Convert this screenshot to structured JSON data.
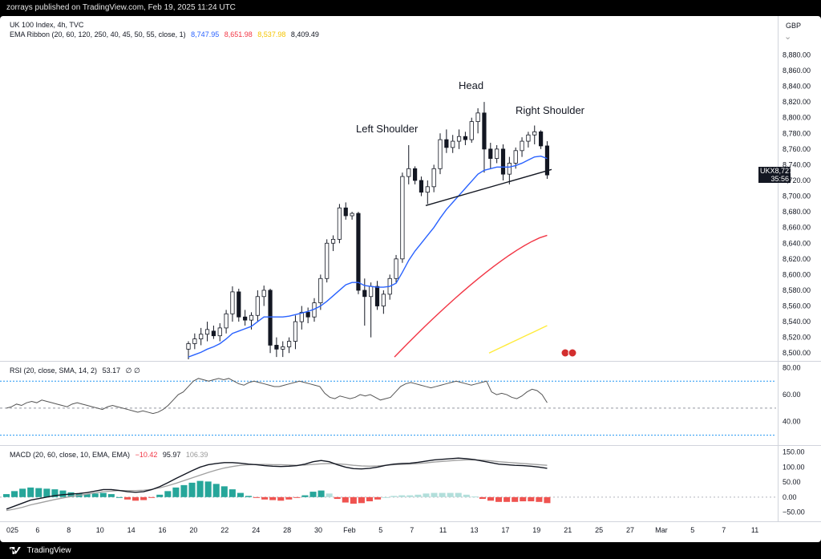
{
  "header": {
    "publisher": "zorrays published on TradingView.com, Feb 19, 2025 11:24 UTC"
  },
  "footer": {
    "brand": "TradingView"
  },
  "main_pane": {
    "title": "UK 100 Index, 4h, TVC",
    "indicator": "EMA Ribbon (20, 60, 120, 250, 40, 45, 50, 55, close, 1)",
    "ema_values": [
      "8,747.95",
      "8,651.98",
      "8,537.98",
      "8,409.49"
    ],
    "ema_colors": [
      "#2962ff",
      "#f23645",
      "#ffeb3b",
      "#131722"
    ],
    "currency": "GBP",
    "symbol": "UKX",
    "last_price": "8,727.23",
    "countdown": "35:56"
  },
  "rsi_pane": {
    "title": "RSI (20, close, SMA, 14, 2)",
    "value": "53.17",
    "extra": "∅ ∅"
  },
  "macd_pane": {
    "title": "MACD (20, 60, close, 10, EMA, EMA)",
    "values": [
      "−10.42",
      "95.97",
      "106.39"
    ]
  },
  "x_axis": {
    "labels": [
      "025",
      "6",
      "8",
      "10",
      "14",
      "16",
      "20",
      "22",
      "24",
      "28",
      "30",
      "Feb",
      "5",
      "7",
      "11",
      "13",
      "17",
      "19",
      "21",
      "25",
      "27",
      "Mar",
      "5",
      "7",
      "11"
    ]
  },
  "chart_data": [
    {
      "type": "candlestick",
      "title": "UK 100 Index, 4h, TVC",
      "y_axis": {
        "ticks": [
          8880,
          8860,
          8840,
          8820,
          8800,
          8780,
          8760,
          8740,
          8720,
          8700,
          8680,
          8660,
          8640,
          8620,
          8600,
          8580,
          8560,
          8540,
          8520,
          8500
        ],
        "tick_labels": [
          "8,880.00",
          "8,860.00",
          "8,840.00",
          "8,820.00",
          "8,800.00",
          "8,780.00",
          "8,760.00",
          "8,740.00",
          "8,720.00",
          "8,700.00",
          "8,680.00",
          "8,660.00",
          "8,640.00",
          "8,620.00",
          "8,600.00",
          "8,580.00",
          "8,560.00",
          "8,540.00",
          "8,520.00",
          "8,500.00"
        ],
        "range": [
          8490,
          8905
        ]
      },
      "annotations": [
        "Left Shoulder",
        "Head",
        "Right Shoulder"
      ],
      "candles": [
        [
          8505,
          8515,
          8492,
          8512
        ],
        [
          8512,
          8525,
          8505,
          8518
        ],
        [
          8518,
          8532,
          8510,
          8524
        ],
        [
          8524,
          8540,
          8515,
          8530
        ],
        [
          8528,
          8535,
          8518,
          8522
        ],
        [
          8522,
          8538,
          8515,
          8532
        ],
        [
          8532,
          8555,
          8525,
          8550
        ],
        [
          8550,
          8585,
          8540,
          8578
        ],
        [
          8578,
          8582,
          8540,
          8546
        ],
        [
          8546,
          8555,
          8535,
          8542
        ],
        [
          8542,
          8552,
          8530,
          8548
        ],
        [
          8548,
          8580,
          8540,
          8572
        ],
        [
          8572,
          8586,
          8560,
          8580
        ],
        [
          8580,
          8582,
          8500,
          8510
        ],
        [
          8510,
          8520,
          8495,
          8505
        ],
        [
          8505,
          8515,
          8495,
          8508
        ],
        [
          8508,
          8520,
          8500,
          8515
        ],
        [
          8515,
          8548,
          8505,
          8540
        ],
        [
          8540,
          8560,
          8530,
          8552
        ],
        [
          8552,
          8558,
          8538,
          8546
        ],
        [
          8546,
          8570,
          8540,
          8564
        ],
        [
          8564,
          8600,
          8555,
          8595
        ],
        [
          8595,
          8645,
          8590,
          8640
        ],
        [
          8640,
          8650,
          8630,
          8645
        ],
        [
          8645,
          8690,
          8640,
          8685
        ],
        [
          8685,
          8692,
          8670,
          8675
        ],
        [
          8675,
          8680,
          8670,
          8678
        ],
        [
          8678,
          8680,
          8575,
          8580
        ],
        [
          8580,
          8595,
          8535,
          8572
        ],
        [
          8572,
          8590,
          8520,
          8585
        ],
        [
          8585,
          8592,
          8555,
          8560
        ],
        [
          8560,
          8580,
          8550,
          8575
        ],
        [
          8575,
          8600,
          8568,
          8595
        ],
        [
          8595,
          8625,
          8590,
          8620
        ],
        [
          8620,
          8730,
          8615,
          8725
        ],
        [
          8725,
          8765,
          8715,
          8735
        ],
        [
          8735,
          8738,
          8715,
          8720
        ],
        [
          8720,
          8725,
          8700,
          8705
        ],
        [
          8705,
          8720,
          8690,
          8712
        ],
        [
          8712,
          8740,
          8705,
          8735
        ],
        [
          8735,
          8780,
          8728,
          8772
        ],
        [
          8772,
          8785,
          8755,
          8762
        ],
        [
          8762,
          8778,
          8755,
          8770
        ],
        [
          8770,
          8785,
          8760,
          8776
        ],
        [
          8776,
          8782,
          8765,
          8772
        ],
        [
          8772,
          8800,
          8768,
          8795
        ],
        [
          8795,
          8812,
          8780,
          8806
        ],
        [
          8806,
          8820,
          8730,
          8760
        ],
        [
          8760,
          8768,
          8735,
          8748
        ],
        [
          8748,
          8765,
          8742,
          8760
        ],
        [
          8760,
          8766,
          8720,
          8728
        ],
        [
          8728,
          8750,
          8715,
          8742
        ],
        [
          8742,
          8762,
          8735,
          8758
        ],
        [
          8758,
          8775,
          8750,
          8770
        ],
        [
          8770,
          8782,
          8762,
          8778
        ],
        [
          8778,
          8790,
          8766,
          8782
        ],
        [
          8782,
          8784,
          8760,
          8764
        ],
        [
          8764,
          8770,
          8722,
          8727
        ]
      ],
      "ema_blue": [
        8495,
        8498,
        8501,
        8505,
        8508,
        8512,
        8518,
        8525,
        8528,
        8531,
        8534,
        8540,
        8546,
        8546,
        8546,
        8546,
        8547,
        8549,
        8551,
        8553,
        8556,
        8560,
        8566,
        8573,
        8580,
        8587,
        8590,
        8590,
        8586,
        8585,
        8584,
        8584,
        8585,
        8589,
        8603,
        8618,
        8630,
        8640,
        8650,
        8660,
        8672,
        8683,
        8692,
        8701,
        8710,
        8719,
        8728,
        8733,
        8735,
        8737,
        8737,
        8737,
        8739,
        8742,
        8746,
        8750,
        8751,
        8748
      ],
      "ema_red_range": [
        8495,
        8650
      ],
      "ema_yellow_range": [
        8500,
        8535
      ]
    },
    {
      "type": "line",
      "title": "RSI (20, close, SMA, 14, 2)",
      "y_axis": {
        "tick_labels": [
          "80.00",
          "60.00",
          "40.00"
        ],
        "range": [
          25,
          82
        ]
      },
      "bands": [
        70,
        50,
        30
      ],
      "values": [
        50,
        51,
        53,
        52,
        54,
        55,
        54,
        56,
        55,
        54,
        53,
        52,
        51,
        53,
        54,
        53,
        52,
        51,
        50,
        49,
        51,
        52,
        51,
        50,
        49,
        48,
        47,
        48,
        47,
        46,
        47,
        49,
        52,
        56,
        60,
        62,
        66,
        70,
        72,
        71,
        70,
        71,
        72,
        71,
        72,
        70,
        68,
        67,
        69,
        70,
        69,
        68,
        67,
        66,
        66,
        67,
        68,
        69,
        70,
        69,
        68,
        67,
        66,
        61,
        58,
        57,
        59,
        58,
        57,
        58,
        60,
        59,
        60,
        58,
        56,
        57,
        58,
        62,
        66,
        68,
        69,
        68,
        67,
        66,
        65,
        66,
        67,
        68,
        69,
        70,
        69,
        68,
        67,
        68,
        69,
        70,
        62,
        60,
        61,
        60,
        58,
        57,
        59,
        62,
        64,
        63,
        60,
        54
      ]
    },
    {
      "type": "line",
      "title": "MACD (20, 60, close, 10, EMA, EMA)",
      "y_axis": {
        "tick_labels": [
          "150.00",
          "100.00",
          "50.00",
          "0.00",
          "−50.00"
        ],
        "range": [
          -70,
          160
        ]
      },
      "macd_values": [
        -40,
        -30,
        -20,
        -10,
        -5,
        0,
        5,
        8,
        10,
        12,
        15,
        20,
        25,
        25,
        22,
        18,
        16,
        18,
        25,
        35,
        48,
        62,
        75,
        88,
        100,
        108,
        112,
        115,
        115,
        113,
        110,
        108,
        105,
        103,
        102,
        103,
        105,
        110,
        118,
        122,
        118,
        108,
        100,
        95,
        94,
        96,
        100,
        106,
        110,
        112,
        113,
        116,
        120,
        124,
        126,
        128,
        130,
        128,
        125,
        120,
        115,
        110,
        108,
        106,
        105,
        103,
        100,
        96
      ],
      "signal_values": [
        -45,
        -40,
        -34,
        -26,
        -20,
        -14,
        -8,
        -3,
        2,
        6,
        10,
        14,
        18,
        20,
        22,
        22,
        22,
        23,
        26,
        31,
        38,
        46,
        55,
        64,
        73,
        82,
        90,
        97,
        102,
        106,
        108,
        109,
        109,
        108,
        108,
        107,
        106,
        107,
        109,
        111,
        112,
        111,
        109,
        106,
        104,
        103,
        104,
        106,
        108,
        109,
        110,
        112,
        114,
        117,
        119,
        121,
        123,
        124,
        124,
        123,
        121,
        118,
        116,
        114,
        112,
        110,
        108,
        106
      ]
    }
  ]
}
